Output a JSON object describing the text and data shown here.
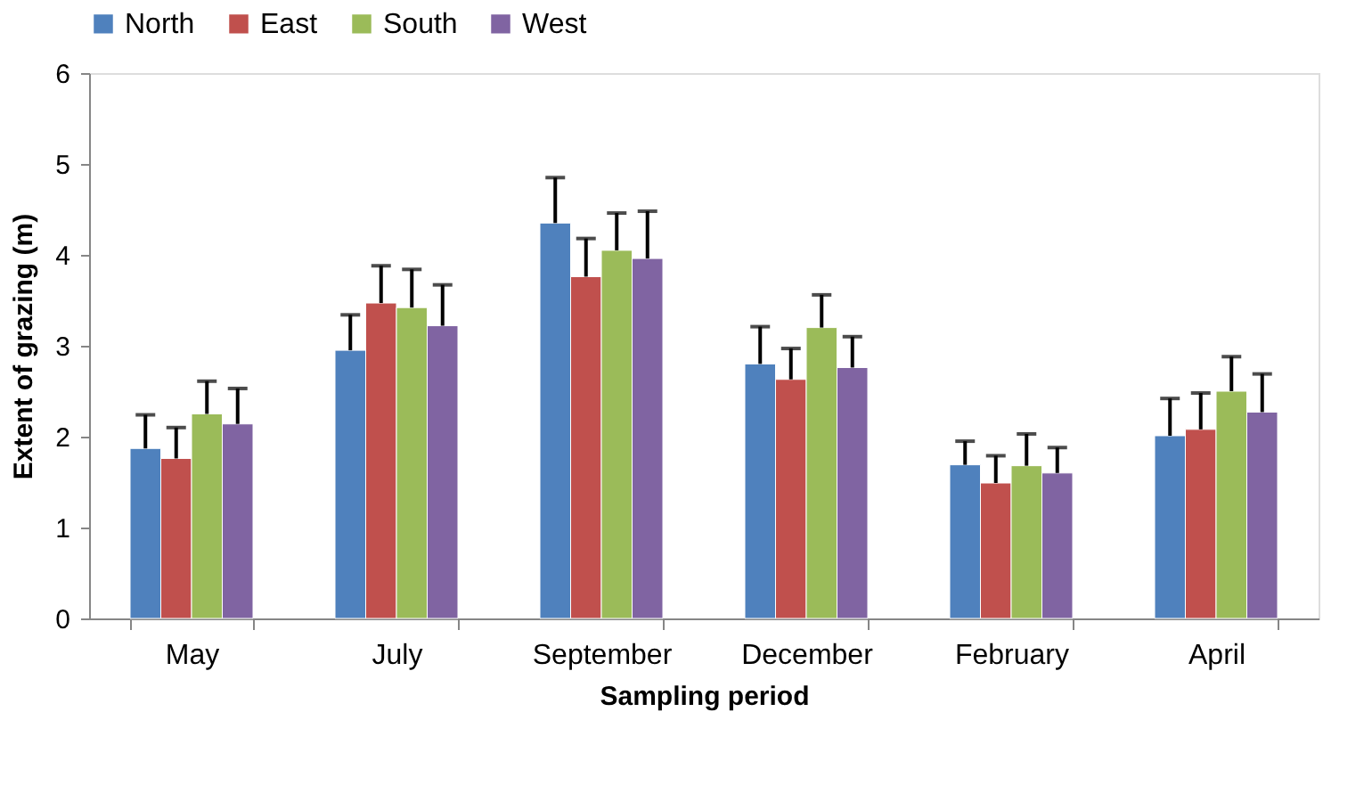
{
  "chart_data": {
    "type": "bar",
    "xlabel": "Sampling period",
    "ylabel": "Extent of grazing (m)",
    "categories": [
      "May",
      "July",
      "September",
      "December",
      "February",
      "April"
    ],
    "series": [
      {
        "name": "North",
        "color": "#4f81bd",
        "values": [
          1.87,
          2.95,
          4.35,
          2.8,
          1.69,
          2.01
        ],
        "errors": [
          [
            1.87,
            2.24
          ],
          [
            2.95,
            3.34
          ],
          [
            4.35,
            4.85
          ],
          [
            2.8,
            3.21
          ],
          [
            1.69,
            1.95
          ],
          [
            2.01,
            2.42
          ]
        ]
      },
      {
        "name": "East",
        "color": "#c0504d",
        "values": [
          1.76,
          3.47,
          3.76,
          2.63,
          1.49,
          2.08
        ],
        "errors": [
          [
            1.76,
            2.1
          ],
          [
            3.47,
            3.88
          ],
          [
            3.76,
            4.18
          ],
          [
            2.63,
            2.97
          ],
          [
            1.49,
            1.79
          ],
          [
            2.08,
            2.48
          ]
        ]
      },
      {
        "name": "South",
        "color": "#9bbb59",
        "values": [
          2.25,
          3.42,
          4.05,
          3.2,
          1.68,
          2.5
        ],
        "errors": [
          [
            2.25,
            2.61
          ],
          [
            3.42,
            3.84
          ],
          [
            4.05,
            4.46
          ],
          [
            3.2,
            3.56
          ],
          [
            1.68,
            2.03
          ],
          [
            2.5,
            2.88
          ]
        ]
      },
      {
        "name": "West",
        "color": "#8064a2",
        "values": [
          2.14,
          3.22,
          3.96,
          2.76,
          1.6,
          2.27
        ],
        "errors": [
          [
            2.14,
            2.53
          ],
          [
            3.22,
            3.67
          ],
          [
            3.96,
            4.48
          ],
          [
            2.76,
            3.1
          ],
          [
            1.6,
            1.88
          ],
          [
            2.27,
            2.69
          ]
        ]
      }
    ],
    "ylim": [
      0,
      6
    ],
    "yticks": [
      0,
      1,
      2,
      3,
      4,
      5,
      6
    ],
    "grid": false,
    "legend": "top"
  }
}
